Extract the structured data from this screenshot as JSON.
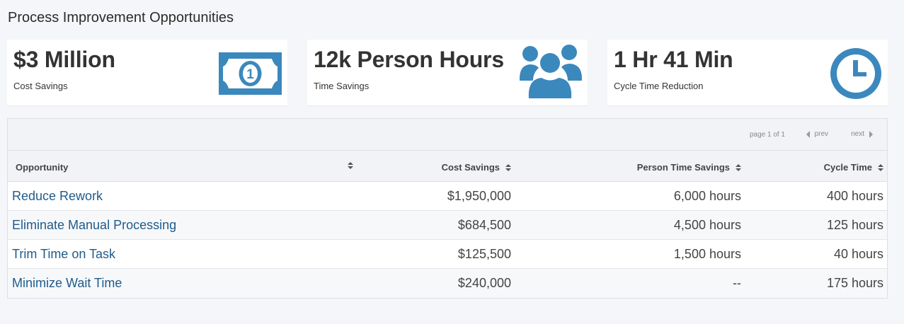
{
  "page": {
    "title": "Process Improvement Opportunities"
  },
  "cards": [
    {
      "value": "$3 Million",
      "label": "Cost Savings",
      "icon": "money-bill-icon",
      "color": "#3b88bd"
    },
    {
      "value": "12k Person Hours",
      "label": "Time Savings",
      "icon": "users-icon",
      "color": "#3b88bd"
    },
    {
      "value": "1 Hr 41 Min",
      "label": "Cycle Time Reduction",
      "icon": "clock-icon",
      "color": "#3b88bd"
    }
  ],
  "pager": {
    "info": "page 1 of 1",
    "prev": "prev",
    "next": "next"
  },
  "table": {
    "headers": [
      "Opportunity",
      "Cost Savings",
      "Person Time Savings",
      "Cycle Time"
    ],
    "rows": [
      {
        "opportunity": "Reduce Rework",
        "cost": "$1,950,000",
        "person_time": "6,000 hours",
        "cycle": "400 hours"
      },
      {
        "opportunity": "Eliminate Manual Processing",
        "cost": "$684,500",
        "person_time": "4,500 hours",
        "cycle": "125 hours"
      },
      {
        "opportunity": "Trim Time on Task",
        "cost": "$125,500",
        "person_time": "1,500 hours",
        "cycle": "40 hours"
      },
      {
        "opportunity": "Minimize Wait Time",
        "cost": "$240,000",
        "person_time": "--",
        "cycle": "175 hours"
      }
    ]
  },
  "colors": {
    "accent": "#3b88bd",
    "link": "#1f5b8a"
  }
}
